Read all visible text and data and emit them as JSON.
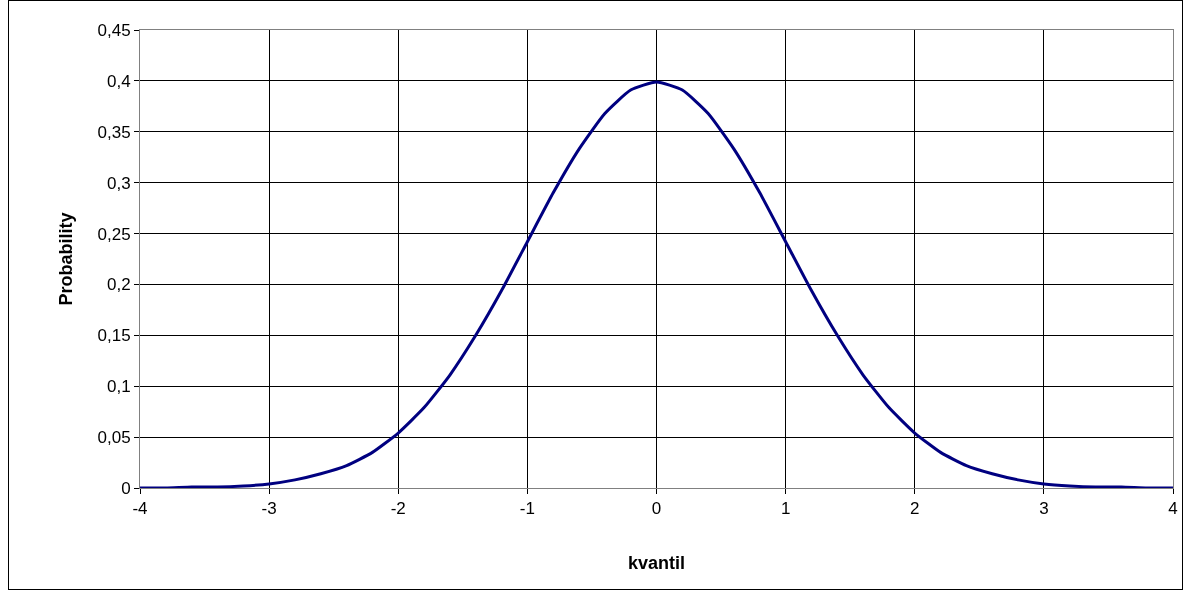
{
  "chart_data": {
    "type": "line",
    "xlabel": "kvantil",
    "ylabel": "Probability",
    "x": [
      -4,
      -3.8,
      -3.6,
      -3.4,
      -3.2,
      -3,
      -2.8,
      -2.6,
      -2.4,
      -2.2,
      -2,
      -1.8,
      -1.6,
      -1.4,
      -1.2,
      -1,
      -0.8,
      -0.6,
      -0.4,
      -0.2,
      0,
      0.2,
      0.4,
      0.6,
      0.8,
      1,
      1.2,
      1.4,
      1.6,
      1.8,
      2,
      2.2,
      2.4,
      2.6,
      2.8,
      3,
      3.2,
      3.4,
      3.6,
      3.8,
      4
    ],
    "series": [
      {
        "color": "#000080",
        "values": [
          0.0,
          0.0,
          0.001,
          0.001,
          0.002,
          0.004,
          0.008,
          0.014,
          0.022,
          0.035,
          0.054,
          0.079,
          0.111,
          0.15,
          0.194,
          0.242,
          0.29,
          0.333,
          0.368,
          0.391,
          0.399,
          0.391,
          0.368,
          0.333,
          0.29,
          0.242,
          0.194,
          0.15,
          0.111,
          0.079,
          0.054,
          0.035,
          0.022,
          0.014,
          0.008,
          0.004,
          0.002,
          0.001,
          0.001,
          0.0,
          0.0
        ]
      }
    ],
    "xlim": [
      -4,
      4
    ],
    "xticks": [
      -4,
      -3,
      -2,
      -1,
      0,
      1,
      2,
      3,
      4
    ],
    "ylim": [
      0,
      0.45
    ],
    "yticks": [
      0,
      {
        "value": 0.05,
        "label": "0,05"
      },
      {
        "value": 0.1,
        "label": "0,1"
      },
      {
        "value": 0.15,
        "label": "0,15"
      },
      {
        "value": 0.2,
        "label": "0,2"
      },
      {
        "value": 0.25,
        "label": "0,25"
      },
      {
        "value": 0.3,
        "label": "0,3"
      },
      {
        "value": 0.35,
        "label": "0,35"
      },
      {
        "value": 0.4,
        "label": "0,4"
      },
      {
        "value": 0.45,
        "label": "0,45"
      }
    ],
    "grid": true,
    "marker": "none",
    "line_style": "solid"
  }
}
